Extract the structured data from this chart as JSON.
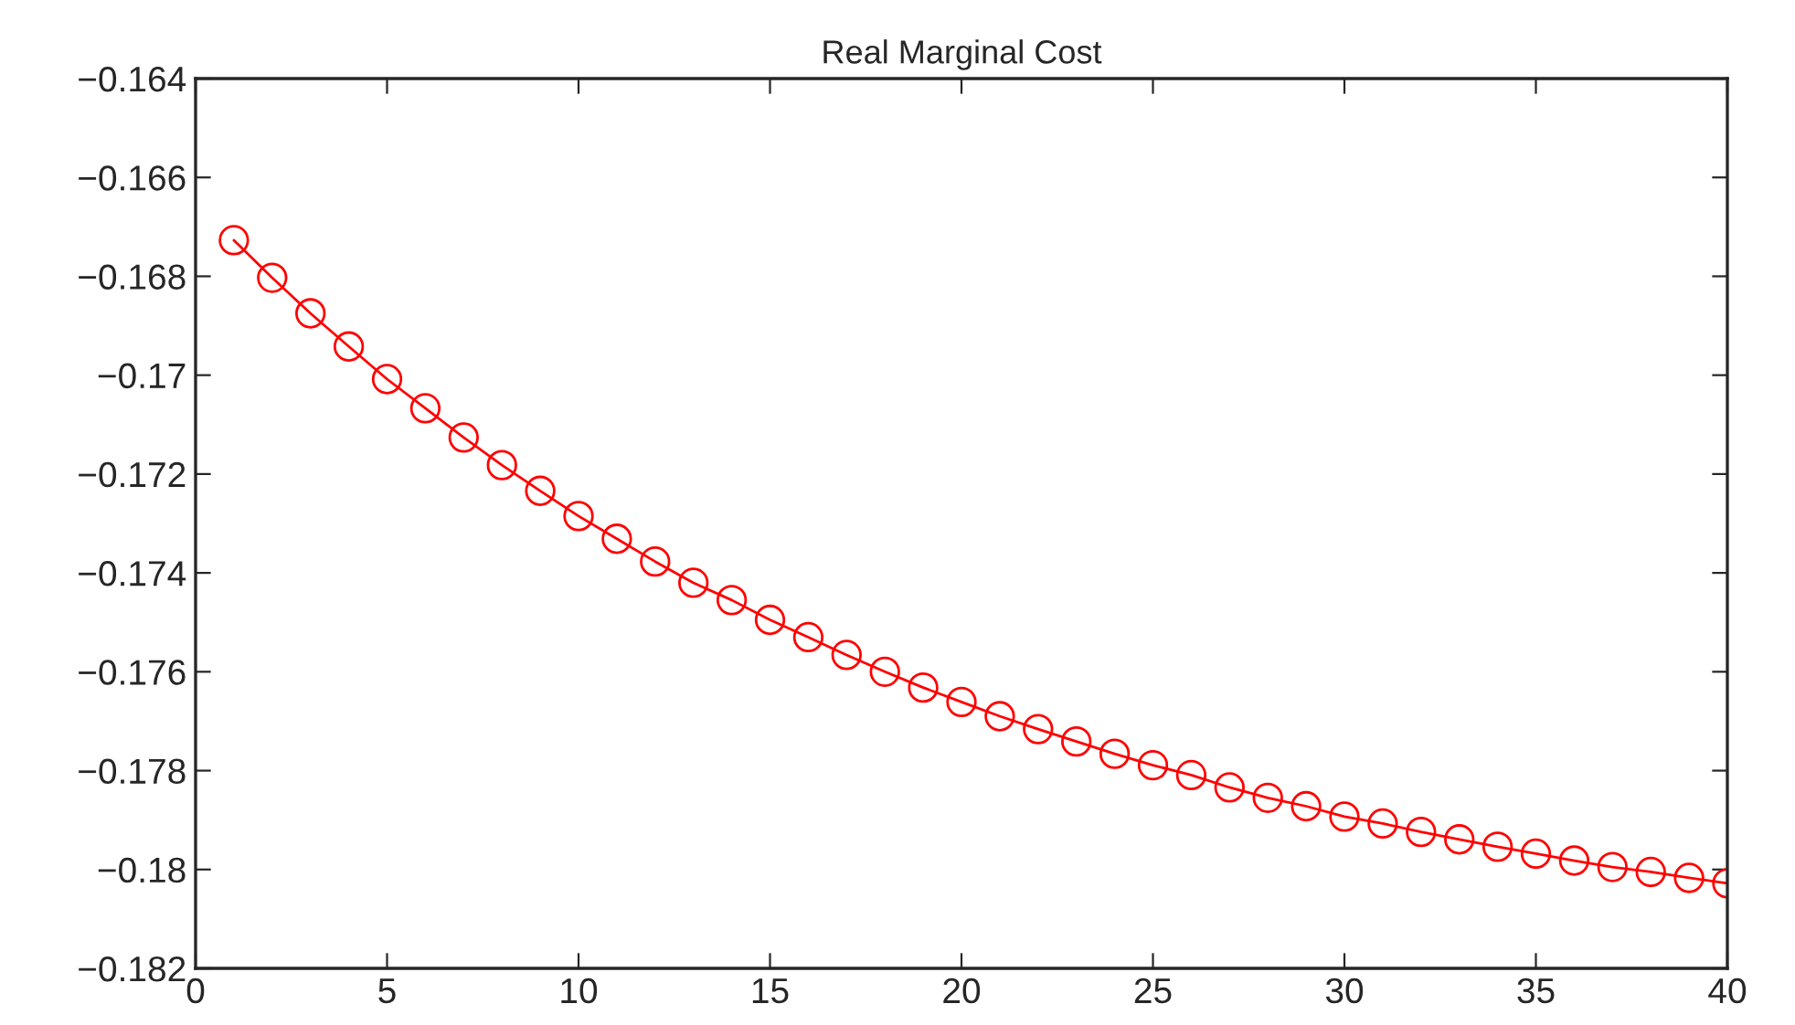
{
  "chart_data": {
    "type": "line",
    "title": "Real Marginal Cost",
    "x": [
      1,
      2,
      3,
      4,
      5,
      6,
      7,
      8,
      9,
      10,
      11,
      12,
      13,
      14,
      15,
      16,
      17,
      18,
      19,
      20,
      21,
      22,
      23,
      24,
      25,
      26,
      27,
      28,
      29,
      30,
      31,
      32,
      33,
      34,
      35,
      36,
      37,
      38,
      39,
      40
    ],
    "series": [
      {
        "color": "#ff0000",
        "values": [
          -0.16727,
          -0.16803,
          -0.16875,
          -0.16942,
          -0.17008,
          -0.17067,
          -0.17126,
          -0.17182,
          -0.17234,
          -0.17285,
          -0.17331,
          -0.17377,
          -0.1742,
          -0.17455,
          -0.17495,
          -0.1753,
          -0.17566,
          -0.176,
          -0.17632,
          -0.17661,
          -0.1769,
          -0.17716,
          -0.17741,
          -0.17766,
          -0.17789,
          -0.17809,
          -0.17834,
          -0.17855,
          -0.17872,
          -0.17893,
          -0.17907,
          -0.17924,
          -0.17939,
          -0.17954,
          -0.17968,
          -0.17982,
          -0.17995,
          -0.18005,
          -0.18017,
          -0.18028
        ]
      }
    ],
    "marker": "circle",
    "line_style": "solid",
    "grid": false,
    "legend": false,
    "xlim": [
      0,
      40
    ],
    "xticks": [
      0,
      5,
      10,
      15,
      20,
      25,
      30,
      35,
      40
    ],
    "ylim": [
      -0.182,
      -0.164
    ],
    "yticks": [
      {
        "value": -0.182,
        "label": "−0.182"
      },
      {
        "value": -0.18,
        "label": "−0.18"
      },
      {
        "value": -0.178,
        "label": "−0.178"
      },
      {
        "value": -0.176,
        "label": "−0.176"
      },
      {
        "value": -0.174,
        "label": "−0.174"
      },
      {
        "value": -0.172,
        "label": "−0.172"
      },
      {
        "value": -0.17,
        "label": "−0.17"
      },
      {
        "value": -0.168,
        "label": "−0.168"
      },
      {
        "value": -0.166,
        "label": "−0.166"
      },
      {
        "value": -0.164,
        "label": "−0.164"
      }
    ]
  }
}
